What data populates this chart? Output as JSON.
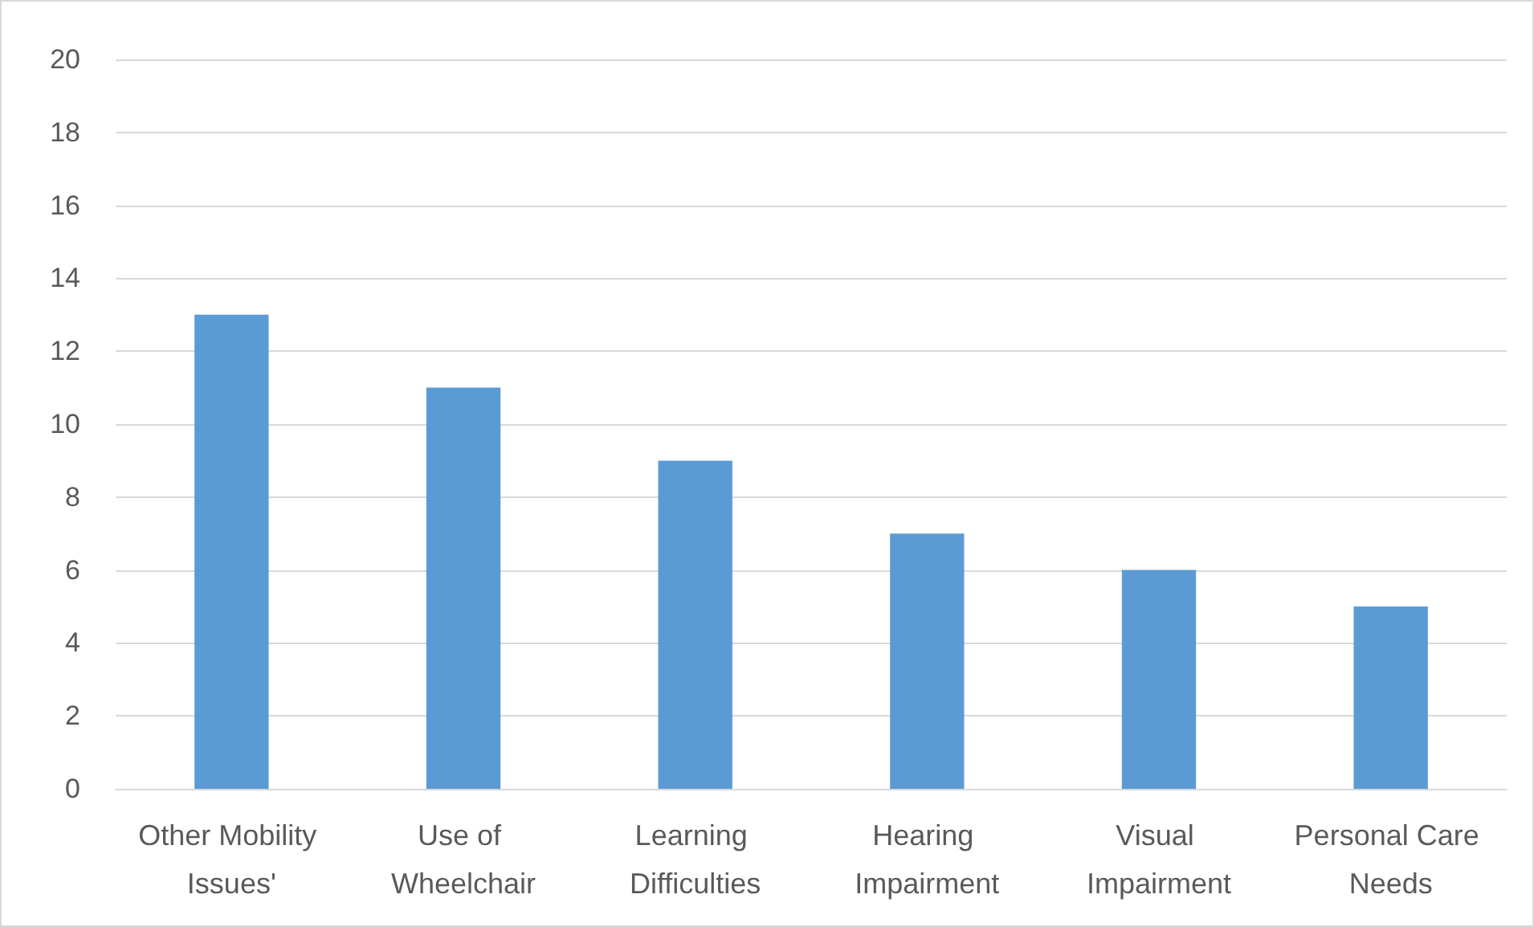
{
  "chart_data": {
    "type": "bar",
    "categories": [
      "Other Mobility Issues'",
      "Use of Wheelchair",
      "Learning Difficulties",
      "Hearing Impairment",
      "Visual Impairment",
      "Personal Care Needs"
    ],
    "values": [
      13,
      11,
      9,
      7,
      6,
      5
    ],
    "color": "#5b9bd5",
    "ylim": [
      0,
      20
    ],
    "yticks": [
      0,
      2,
      4,
      6,
      8,
      10,
      12,
      14,
      16,
      18,
      20
    ],
    "grid": "y"
  }
}
